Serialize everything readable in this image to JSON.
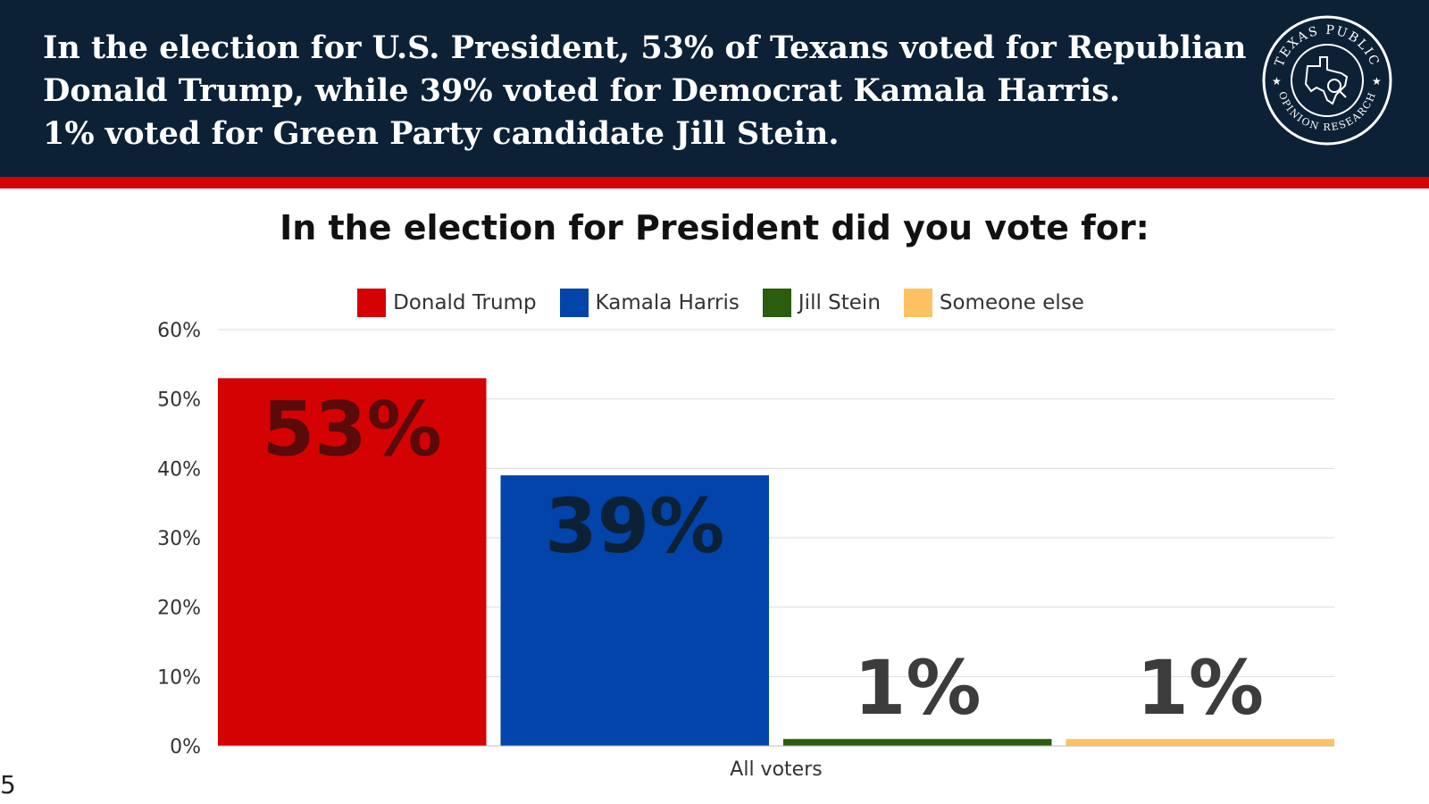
{
  "header": {
    "lines": [
      "In the election for U.S. President, 53% of Texans voted for Republian",
      "Donald Trump, while 39% voted for Democrat Kamala Harris.",
      "1% voted for Green Party candidate Jill Stein."
    ],
    "background": "#0d2136",
    "stripe_color": "#d40202"
  },
  "logo": {
    "top_text": "TEXAS PUBLIC",
    "bottom_text": "OPINION RESEARCH",
    "icon": "texas-magnifier-icon"
  },
  "page_number": "5",
  "chart_data": {
    "type": "bar",
    "title": "In the election for President did you vote for:",
    "categories": [
      "All voters"
    ],
    "series": [
      {
        "name": "Donald Trump",
        "values": [
          53
        ],
        "label": "53%",
        "color": "#d40202",
        "label_color": "#5a0a0a"
      },
      {
        "name": "Kamala Harris",
        "values": [
          39
        ],
        "label": "39%",
        "color": "#0244aa",
        "label_color": "#0d2136"
      },
      {
        "name": "Jill Stein",
        "values": [
          1
        ],
        "label": "1%",
        "color": "#2a5d0e",
        "label_color": "#3c3c3c"
      },
      {
        "name": "Someone else",
        "values": [
          1
        ],
        "label": "1%",
        "color": "#fcc262",
        "label_color": "#3c3c3c"
      }
    ],
    "yticks": [
      0,
      10,
      20,
      30,
      40,
      50,
      60
    ],
    "ytick_labels": [
      "0%",
      "10%",
      "20%",
      "30%",
      "40%",
      "50%",
      "60%"
    ],
    "ylim": [
      0,
      60
    ],
    "grid": true,
    "legend_position": "top-center"
  }
}
